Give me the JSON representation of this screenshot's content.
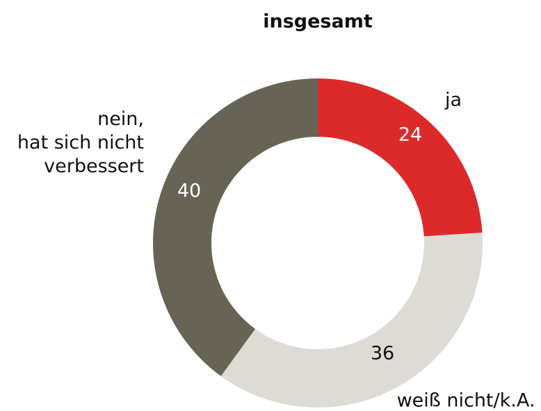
{
  "chart_data": {
    "type": "donut",
    "title": "insgesamt",
    "categories": [
      "ja",
      "weiß nicht/k.A.",
      "nein,\nhat sich nicht\nverbessert"
    ],
    "values": [
      24,
      36,
      40
    ],
    "colors": [
      "#dc2a2a",
      "#dcdbd5",
      "#676455"
    ]
  }
}
